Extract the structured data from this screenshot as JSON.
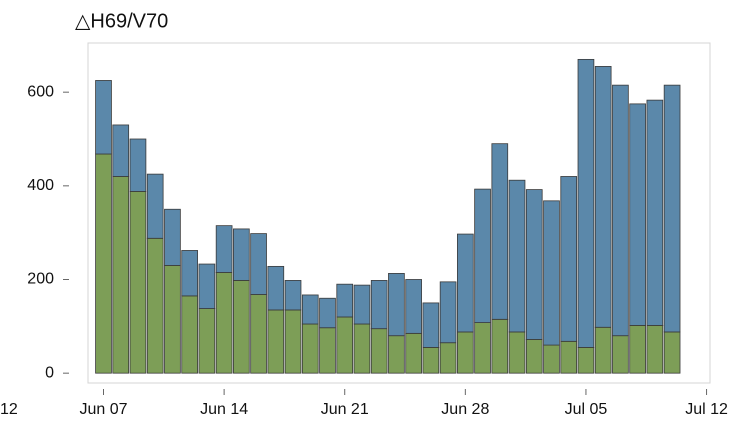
{
  "chart_data": {
    "type": "stacked_bar",
    "title": "△H69/V70",
    "x": [
      0,
      1,
      2,
      3,
      4,
      5,
      6,
      7,
      8,
      9,
      10,
      11,
      12,
      13,
      14,
      15,
      16,
      17,
      18,
      19,
      20,
      21,
      22,
      23,
      24,
      25,
      26,
      27,
      28,
      29,
      30,
      31,
      32,
      33
    ],
    "series": [
      {
        "color": "#7d9e57",
        "values": [
          468,
          420,
          388,
          288,
          230,
          165,
          138,
          215,
          198,
          168,
          135,
          135,
          105,
          97,
          120,
          105,
          95,
          80,
          85,
          55,
          65,
          88,
          108,
          115,
          88,
          72,
          60,
          68,
          55,
          98,
          80,
          102,
          102,
          88
        ]
      },
      {
        "color": "#5b88aa",
        "values": [
          157,
          110,
          112,
          137,
          120,
          97,
          95,
          100,
          110,
          130,
          93,
          63,
          62,
          63,
          70,
          83,
          103,
          133,
          115,
          95,
          130,
          209,
          285,
          375,
          324,
          320,
          308,
          352,
          615,
          557,
          535,
          473,
          481,
          527
        ]
      }
    ],
    "xlim": [
      -0.9,
      35.2
    ],
    "xticks": [
      {
        "value": 0,
        "label": "Jun 07"
      },
      {
        "value": 7,
        "label": "Jun 14"
      },
      {
        "value": 14,
        "label": "Jun 21"
      },
      {
        "value": 21,
        "label": "Jun 28"
      },
      {
        "value": 28,
        "label": "Jul 05"
      },
      {
        "value": 35,
        "label": "Jul 12"
      }
    ],
    "ylim": [
      -21,
      705
    ],
    "yticks": [
      0,
      200,
      400,
      600
    ],
    "clipped_label": "12"
  }
}
